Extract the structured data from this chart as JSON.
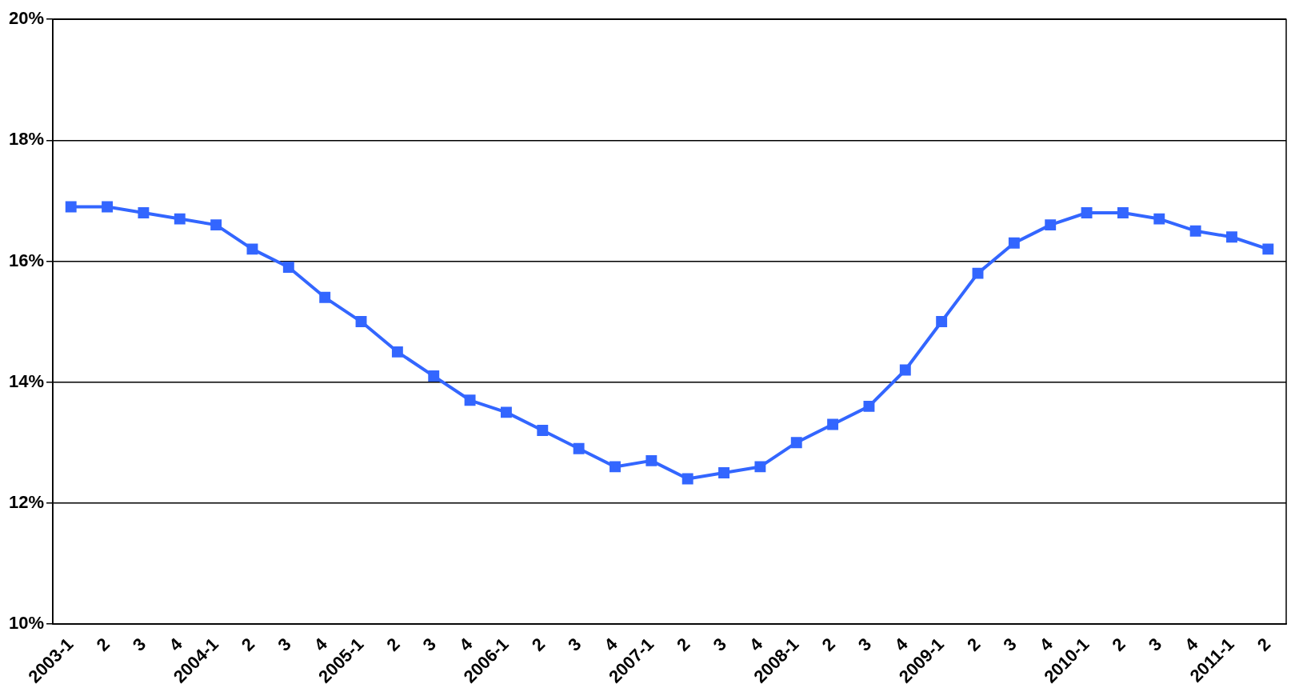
{
  "chart_data": {
    "type": "line",
    "categories": [
      "2003-1",
      "2",
      "3",
      "4",
      "2004-1",
      "2",
      "3",
      "4",
      "2005-1",
      "2",
      "3",
      "4",
      "2006-1",
      "2",
      "3",
      "4",
      "2007-1",
      "2",
      "3",
      "4",
      "2008-1",
      "2",
      "3",
      "4",
      "2009-1",
      "2",
      "3",
      "4",
      "2010-1",
      "2",
      "3",
      "4",
      "2011-1",
      "2"
    ],
    "series": [
      {
        "color": "#3366ff",
        "values": [
          16.9,
          16.9,
          16.8,
          16.7,
          16.6,
          16.2,
          15.9,
          15.4,
          15.0,
          14.5,
          14.1,
          13.7,
          13.5,
          13.2,
          12.9,
          12.6,
          12.7,
          12.4,
          12.5,
          12.6,
          13.0,
          13.3,
          13.6,
          14.2,
          15.0,
          15.8,
          16.3,
          16.6,
          16.8,
          16.8,
          16.7,
          16.5,
          16.4,
          16.2
        ]
      }
    ],
    "ylim": [
      10,
      20
    ],
    "yticks": [
      {
        "value": 10,
        "label": "10%"
      },
      {
        "value": 12,
        "label": "12%"
      },
      {
        "value": 14,
        "label": "14%"
      },
      {
        "value": 16,
        "label": "16%"
      },
      {
        "value": 18,
        "label": "18%"
      },
      {
        "value": 20,
        "label": "20%"
      }
    ],
    "grid": "y",
    "marker": "square",
    "line_style": "solid",
    "legend": false
  }
}
